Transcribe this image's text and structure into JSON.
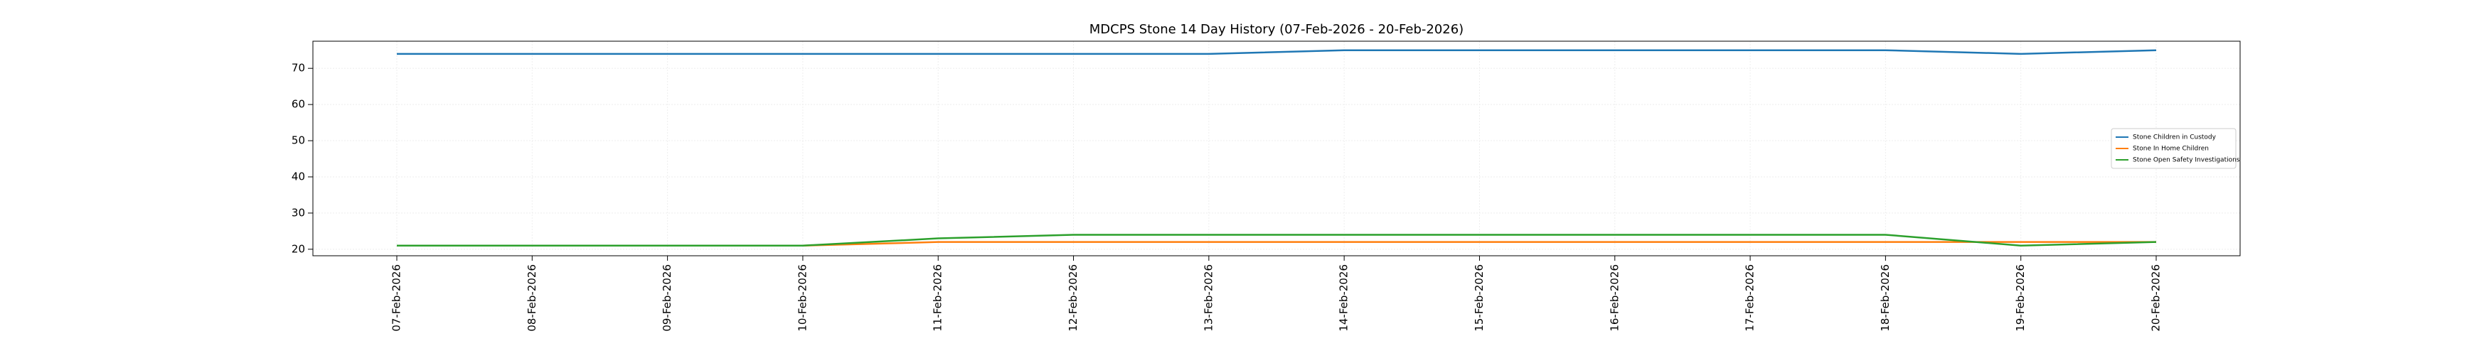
{
  "chart_data": {
    "type": "line",
    "title": "MDCPS Stone 14 Day History (07-Feb-2026 - 20-Feb-2026)",
    "categories": [
      "07-Feb-2026",
      "08-Feb-2026",
      "09-Feb-2026",
      "10-Feb-2026",
      "11-Feb-2026",
      "12-Feb-2026",
      "13-Feb-2026",
      "14-Feb-2026",
      "15-Feb-2026",
      "16-Feb-2026",
      "17-Feb-2026",
      "18-Feb-2026",
      "19-Feb-2026",
      "20-Feb-2026"
    ],
    "series": [
      {
        "name": "Stone Children in Custody",
        "color": "#1f77b4",
        "values": [
          74,
          74,
          74,
          74,
          74,
          74,
          74,
          75,
          75,
          75,
          75,
          75,
          74,
          75
        ]
      },
      {
        "name": "Stone In Home Children",
        "color": "#ff7f0e",
        "values": [
          21,
          21,
          21,
          21,
          22,
          22,
          22,
          22,
          22,
          22,
          22,
          22,
          22,
          22
        ]
      },
      {
        "name": "Stone Open Safety Investigations",
        "color": "#2ca02c",
        "values": [
          21,
          21,
          21,
          21,
          23,
          24,
          24,
          24,
          24,
          24,
          24,
          24,
          21,
          22
        ]
      }
    ],
    "ylim": [
      18.2,
      77.5
    ],
    "yticks": [
      20,
      30,
      40,
      50,
      60,
      70
    ],
    "grid": true,
    "legend": "center right"
  }
}
